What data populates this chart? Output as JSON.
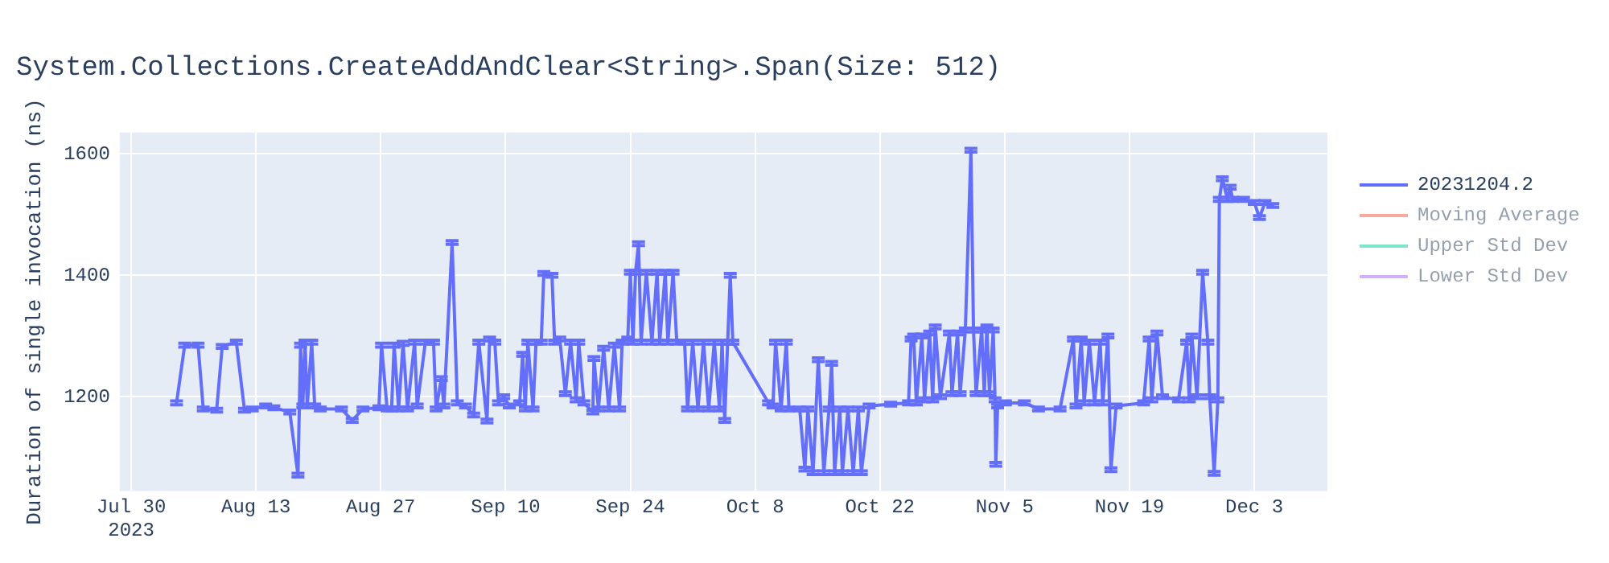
{
  "chart_data": {
    "type": "line",
    "title": "System.Collections.CreateAddAndClear<String>.Span(Size: 512)",
    "ylabel": "Duration of single invocation (ns)",
    "xlim": [
      "2023-07-28T17:00",
      "2023-12-11T05:00"
    ],
    "xticks": [
      {
        "value": "2023-07-30",
        "label": "Jul 30\n2023"
      },
      {
        "value": "2023-08-13",
        "label": "Aug 13"
      },
      {
        "value": "2023-08-27",
        "label": "Aug 27"
      },
      {
        "value": "2023-09-10",
        "label": "Sep 10"
      },
      {
        "value": "2023-09-24",
        "label": "Sep 24"
      },
      {
        "value": "2023-10-08",
        "label": "Oct 8"
      },
      {
        "value": "2023-10-22",
        "label": "Oct 22"
      },
      {
        "value": "2023-11-05",
        "label": "Nov 5"
      },
      {
        "value": "2023-11-19",
        "label": "Nov 19"
      },
      {
        "value": "2023-12-03",
        "label": "Dec 3"
      }
    ],
    "ylim": [
      1045,
      1635
    ],
    "yticks": [
      1200,
      1400,
      1600
    ],
    "grid": true,
    "legend": "top right",
    "marker": "none",
    "line_style": "solid",
    "series": [
      {
        "name": "20231204.2",
        "color": "#636efa",
        "x": [
          "2023-08-04T02:00",
          "2023-08-05T00:00",
          "2023-08-06T12:00",
          "2023-08-07T02:00",
          "2023-08-08T14:00",
          "2023-08-09T05:00",
          "2023-08-10T19:00",
          "2023-08-11T17:00",
          "2023-08-12T14:00",
          "2023-08-14T02:00",
          "2023-08-15T00:00",
          "2023-08-16T19:00",
          "2023-08-17T17:00",
          "2023-08-18T00:00",
          "2023-08-18T06:00",
          "2023-08-18T12:00",
          "2023-08-18T18:00",
          "2023-08-19T06:00",
          "2023-08-19T14:00",
          "2023-08-20T05:00",
          "2023-08-22T14:00",
          "2023-08-23T19:00",
          "2023-08-25T00:00",
          "2023-08-26T19:00",
          "2023-08-27T02:00",
          "2023-08-27T17:00",
          "2023-08-28T05:00",
          "2023-08-28T12:00",
          "2023-08-29T00:00",
          "2023-08-29T12:00",
          "2023-08-30T00:00",
          "2023-08-30T19:00",
          "2023-08-31T02:00",
          "2023-09-01T00:00",
          "2023-09-01T22:00",
          "2023-09-02T05:00",
          "2023-09-02T19:00",
          "2023-09-03T02:00",
          "2023-09-04T00:00",
          "2023-09-04T14:00",
          "2023-09-05T12:00",
          "2023-09-06T10:00",
          "2023-09-07T00:00",
          "2023-09-07T22:00",
          "2023-09-08T05:00",
          "2023-09-08T19:00",
          "2023-09-09T05:00",
          "2023-09-09T19:00",
          "2023-09-10T10:00",
          "2023-09-11T14:00",
          "2023-09-11T22:00",
          "2023-09-12T05:00",
          "2023-09-12T12:00",
          "2023-09-13T02:00",
          "2023-09-13T10:00",
          "2023-09-14T00:00",
          "2023-09-14T07:00",
          "2023-09-15T05:00",
          "2023-09-15T12:00",
          "2023-09-16T02:00",
          "2023-09-16T17:00",
          "2023-09-17T07:00",
          "2023-09-17T22:00",
          "2023-09-18T05:00",
          "2023-09-18T19:00",
          "2023-09-19T19:00",
          "2023-09-19T22:00",
          "2023-09-20T10:00",
          "2023-09-21T00:00",
          "2023-09-21T14:00",
          "2023-09-22T05:00",
          "2023-09-22T19:00",
          "2023-09-23T02:00",
          "2023-09-23T17:00",
          "2023-09-24T00:00",
          "2023-09-24T07:00",
          "2023-09-24T14:00",
          "2023-09-24T22:00",
          "2023-09-25T05:00",
          "2023-09-25T19:00",
          "2023-09-26T10:00",
          "2023-09-27T00:00",
          "2023-09-27T07:00",
          "2023-09-27T22:00",
          "2023-09-28T05:00",
          "2023-09-28T19:00",
          "2023-09-29T05:00",
          "2023-09-30T02:00",
          "2023-09-30T10:00",
          "2023-10-01T00:00",
          "2023-10-01T14:00",
          "2023-10-02T05:00",
          "2023-10-02T19:00",
          "2023-10-03T10:00",
          "2023-10-04T00:00",
          "2023-10-04T07:00",
          "2023-10-04T14:00",
          "2023-10-04T22:00",
          "2023-10-05T05:00",
          "2023-10-05T12:00",
          "2023-10-09T12:00",
          "2023-10-10T00:00",
          "2023-10-10T07:00",
          "2023-10-10T22:00",
          "2023-10-11T12:00",
          "2023-10-11T19:00",
          "2023-10-13T00:00",
          "2023-10-13T14:00",
          "2023-10-13T22:00",
          "2023-10-14T12:00",
          "2023-10-15T02:00",
          "2023-10-15T17:00",
          "2023-10-16T07:00",
          "2023-10-16T14:00",
          "2023-10-16T22:00",
          "2023-10-17T12:00",
          "2023-10-17T19:00",
          "2023-10-18T10:00",
          "2023-10-19T00:00",
          "2023-10-19T14:00",
          "2023-10-19T22:00",
          "2023-10-20T19:00",
          "2023-10-23T05:00",
          "2023-10-25T05:00",
          "2023-10-25T12:00",
          "2023-10-25T19:00",
          "2023-10-26T02:00",
          "2023-10-26T17:00",
          "2023-10-27T00:00",
          "2023-10-27T14:00",
          "2023-10-27T22:00",
          "2023-10-28T05:00",
          "2023-10-28T19:00",
          "2023-10-29T19:00",
          "2023-10-30T02:00",
          "2023-10-30T17:00",
          "2023-10-31T00:00",
          "2023-10-31T14:00",
          "2023-11-01T05:00",
          "2023-11-01T12:00",
          "2023-11-01T19:00",
          "2023-11-02T10:00",
          "2023-11-02T17:00",
          "2023-11-03T00:00",
          "2023-11-03T07:00",
          "2023-11-03T17:00",
          "2023-11-03T22:00",
          "2023-11-04T00:00",
          "2023-11-04T05:00",
          "2023-11-05T02:00",
          "2023-11-07T05:00",
          "2023-11-08T19:00",
          "2023-11-11T05:00",
          "2023-11-12T17:00",
          "2023-11-13T00:00",
          "2023-11-13T14:00",
          "2023-11-13T22:00",
          "2023-11-14T12:00",
          "2023-11-15T02:00",
          "2023-11-15T17:00",
          "2023-11-16T00:00",
          "2023-11-16T14:00",
          "2023-11-16T22:00",
          "2023-11-17T12:00",
          "2023-11-20T14:00",
          "2023-11-21T05:00",
          "2023-11-21T12:00",
          "2023-11-22T02:00",
          "2023-11-22T17:00",
          "2023-11-24T12:00",
          "2023-11-25T10:00",
          "2023-11-25T17:00",
          "2023-11-26T00:00",
          "2023-11-26T14:00",
          "2023-11-27T05:00",
          "2023-11-27T19:00",
          "2023-11-28T00:00",
          "2023-11-28T12:00",
          "2023-11-28T22:00",
          "2023-11-29T02:00",
          "2023-11-29T10:00",
          "2023-11-30T00:00",
          "2023-11-30T07:00",
          "2023-11-30T14:00",
          "2023-12-01T19:00",
          "2023-12-03T00:00",
          "2023-12-03T14:00",
          "2023-12-04T05:00",
          "2023-12-05T02:00"
        ],
        "values": [
          1190,
          1285,
          1285,
          1180,
          1178,
          1283,
          1290,
          1178,
          1180,
          1185,
          1182,
          1175,
          1071,
          1285,
          1185,
          1290,
          1185,
          1290,
          1185,
          1180,
          1180,
          1161,
          1180,
          1182,
          1285,
          1180,
          1180,
          1285,
          1180,
          1288,
          1180,
          1290,
          1185,
          1290,
          1290,
          1180,
          1230,
          1185,
          1454,
          1190,
          1185,
          1170,
          1290,
          1160,
          1295,
          1290,
          1190,
          1200,
          1185,
          1190,
          1270,
          1180,
          1290,
          1180,
          1290,
          1290,
          1403,
          1400,
          1290,
          1295,
          1205,
          1290,
          1195,
          1290,
          1190,
          1175,
          1263,
          1180,
          1280,
          1180,
          1285,
          1180,
          1290,
          1295,
          1405,
          1290,
          1405,
          1452,
          1290,
          1405,
          1290,
          1405,
          1290,
          1405,
          1290,
          1405,
          1290,
          1290,
          1180,
          1290,
          1180,
          1290,
          1180,
          1290,
          1180,
          1290,
          1161,
          1290,
          1400,
          1290,
          1190,
          1185,
          1290,
          1180,
          1290,
          1180,
          1180,
          1081,
          1180,
          1075,
          1261,
          1075,
          1180,
          1255,
          1075,
          1180,
          1075,
          1180,
          1075,
          1180,
          1075,
          1185,
          1188,
          1190,
          1295,
          1300,
          1190,
          1300,
          1195,
          1305,
          1195,
          1315,
          1200,
          1305,
          1205,
          1305,
          1205,
          1310,
          1606,
          1310,
          1205,
          1310,
          1205,
          1315,
          1205,
          1310,
          1195,
          1089,
          1185,
          1190,
          1190,
          1180,
          1180,
          1295,
          1185,
          1295,
          1190,
          1290,
          1190,
          1290,
          1190,
          1300,
          1080,
          1185,
          1190,
          1295,
          1195,
          1305,
          1200,
          1195,
          1290,
          1195,
          1300,
          1200,
          1405,
          1290,
          1200,
          1074,
          1195,
          1525,
          1559,
          1525,
          1545,
          1525,
          1525,
          1520,
          1495,
          1520,
          1515
        ],
        "errors": [
          3,
          3,
          3,
          3,
          3,
          3,
          3,
          3,
          3,
          3,
          3,
          3,
          3,
          3,
          3,
          3,
          3,
          3,
          3,
          3,
          3,
          3,
          3,
          3,
          3,
          3,
          3,
          3,
          3,
          3,
          3,
          3,
          3,
          3,
          3,
          3,
          3,
          3,
          3,
          3,
          3,
          3,
          3,
          3,
          3,
          3,
          3,
          3,
          3,
          3,
          3,
          3,
          3,
          3,
          3,
          3,
          3,
          3,
          3,
          3,
          3,
          3,
          3,
          3,
          3,
          3,
          3,
          3,
          3,
          3,
          3,
          3,
          3,
          3,
          3,
          3,
          3,
          3,
          3,
          3,
          3,
          3,
          3,
          3,
          3,
          3,
          3,
          3,
          3,
          3,
          3,
          3,
          3,
          3,
          3,
          3,
          3,
          3,
          3,
          3,
          3,
          3,
          3,
          3,
          3,
          3,
          3,
          3,
          3,
          3,
          3,
          3,
          3,
          3,
          3,
          3,
          3,
          3,
          3,
          3,
          3,
          3,
          3,
          3,
          3,
          3,
          3,
          3,
          3,
          3,
          3,
          3,
          3,
          3,
          3,
          3,
          3,
          3,
          3,
          3,
          3,
          3,
          3,
          3,
          3,
          3,
          3,
          3,
          3,
          3,
          3,
          3,
          3,
          3,
          3,
          3,
          3,
          3,
          3,
          3,
          3,
          3,
          3,
          3,
          3,
          3,
          3,
          3,
          3,
          3,
          3,
          3,
          3,
          3,
          3,
          3,
          3,
          3,
          3,
          3,
          3,
          3,
          3,
          3,
          3,
          3,
          3,
          3,
          3
        ]
      },
      {
        "name": "Moving Average",
        "color": "#ef553b"
      },
      {
        "name": "Upper Std Dev",
        "color": "#00cc96"
      },
      {
        "name": "Lower Std Dev",
        "color": "#ab63fa"
      }
    ]
  }
}
